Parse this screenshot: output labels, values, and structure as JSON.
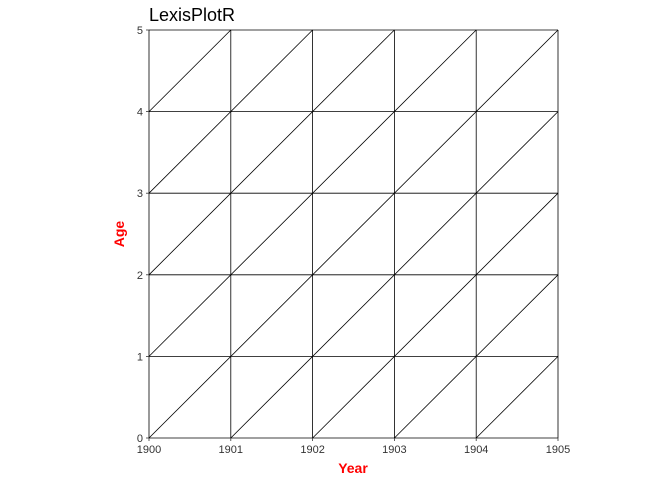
{
  "chart_data": {
    "type": "line",
    "title": "LexisPlotR",
    "xlabel": "Year",
    "ylabel": "Age",
    "xlim": [
      1900,
      1905
    ],
    "ylim": [
      0,
      5
    ],
    "x_ticks": [
      "1900",
      "1901",
      "1902",
      "1903",
      "1904",
      "1905"
    ],
    "y_ticks": [
      "0",
      "1",
      "2",
      "3",
      "4",
      "5"
    ],
    "grid": true,
    "diagonal_lifelines": true,
    "colors": {
      "axis_title": "#ff0000",
      "grid": "#000000",
      "tick_label": "#333333",
      "title": "#000000"
    }
  }
}
